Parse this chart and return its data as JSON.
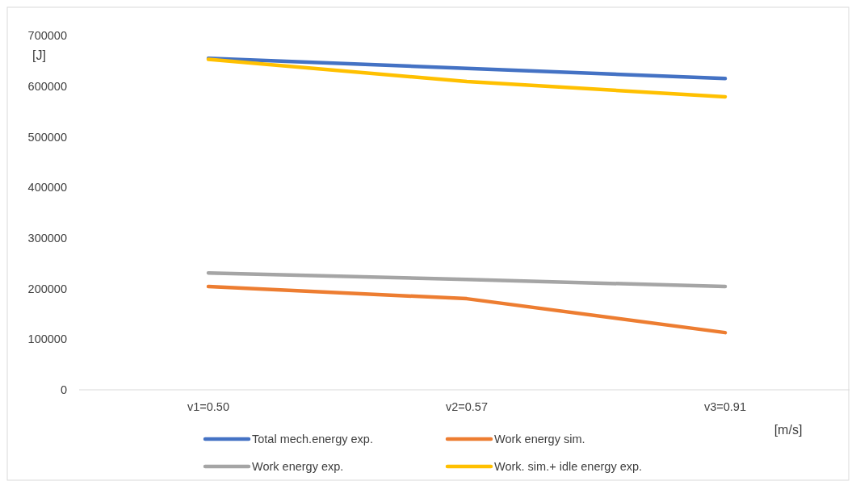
{
  "chart_data": {
    "type": "line",
    "ylabel": "[J]",
    "xlabel": "[m/s]",
    "categories": [
      "v1=0.50",
      "v2=0.57",
      "v3=0.91"
    ],
    "ylim": [
      0,
      700000
    ],
    "yticks": [
      0,
      100000,
      200000,
      300000,
      400000,
      500000,
      600000,
      700000
    ],
    "grid": false,
    "legend": "bottom",
    "marker": "none",
    "line_style": "solid",
    "series": [
      {
        "name": "Total mech.energy exp.",
        "color": "#4472c4",
        "values": [
          655000,
          635000,
          615000
        ]
      },
      {
        "name": "Work energy sim.",
        "color": "#ed7d31",
        "values": [
          204000,
          180000,
          113000
        ]
      },
      {
        "name": "Work energy exp.",
        "color": "#a5a5a5",
        "values": [
          231000,
          218000,
          204000
        ]
      },
      {
        "name": "Work. sim.+ idle energy exp.",
        "color": "#ffc000",
        "values": [
          653000,
          609000,
          579000
        ]
      }
    ]
  }
}
